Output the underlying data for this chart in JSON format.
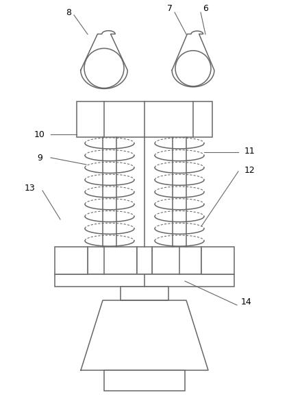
{
  "bg_color": "#ffffff",
  "line_color": "#666666",
  "lw": 1.1,
  "fig_width": 4.22,
  "fig_height": 5.98
}
